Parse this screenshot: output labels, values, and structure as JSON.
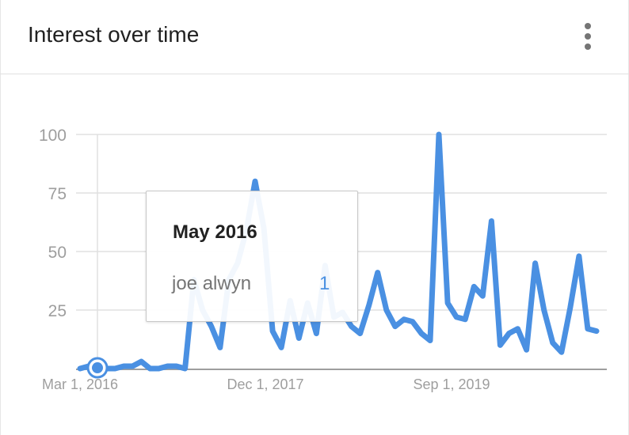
{
  "header": {
    "title": "Interest over time",
    "menu_icon": "more-vert-icon"
  },
  "tooltip": {
    "date": "May 2016",
    "term": "joe alwyn",
    "value": "1"
  },
  "colors": {
    "series": "#4a90e2",
    "grid": "#e0e0e0",
    "axis_text": "#9e9e9e"
  },
  "chart_data": {
    "type": "line",
    "title": "Interest over time",
    "x_tick_labels": [
      "Mar 1, 2016",
      "Dec 1, 2017",
      "Sep 1, 2019"
    ],
    "y_ticks": [
      25,
      50,
      75,
      100
    ],
    "ylim": [
      0,
      100
    ],
    "grid": true,
    "series": [
      {
        "name": "joe alwyn",
        "values": [
          0,
          1,
          0,
          0,
          0,
          1,
          1,
          3,
          0,
          0,
          1,
          1,
          0,
          38,
          25,
          18,
          9,
          38,
          45,
          59,
          80,
          60,
          16,
          9,
          29,
          13,
          28,
          15,
          44,
          22,
          24,
          18,
          15,
          27,
          41,
          25,
          18,
          21,
          20,
          15,
          12,
          100,
          28,
          22,
          21,
          35,
          31,
          63,
          10,
          15,
          17,
          8,
          45,
          25,
          11,
          7,
          26,
          48,
          17,
          16
        ]
      }
    ],
    "highlight": {
      "label": "May 2016",
      "value": 1,
      "index": 1
    }
  }
}
